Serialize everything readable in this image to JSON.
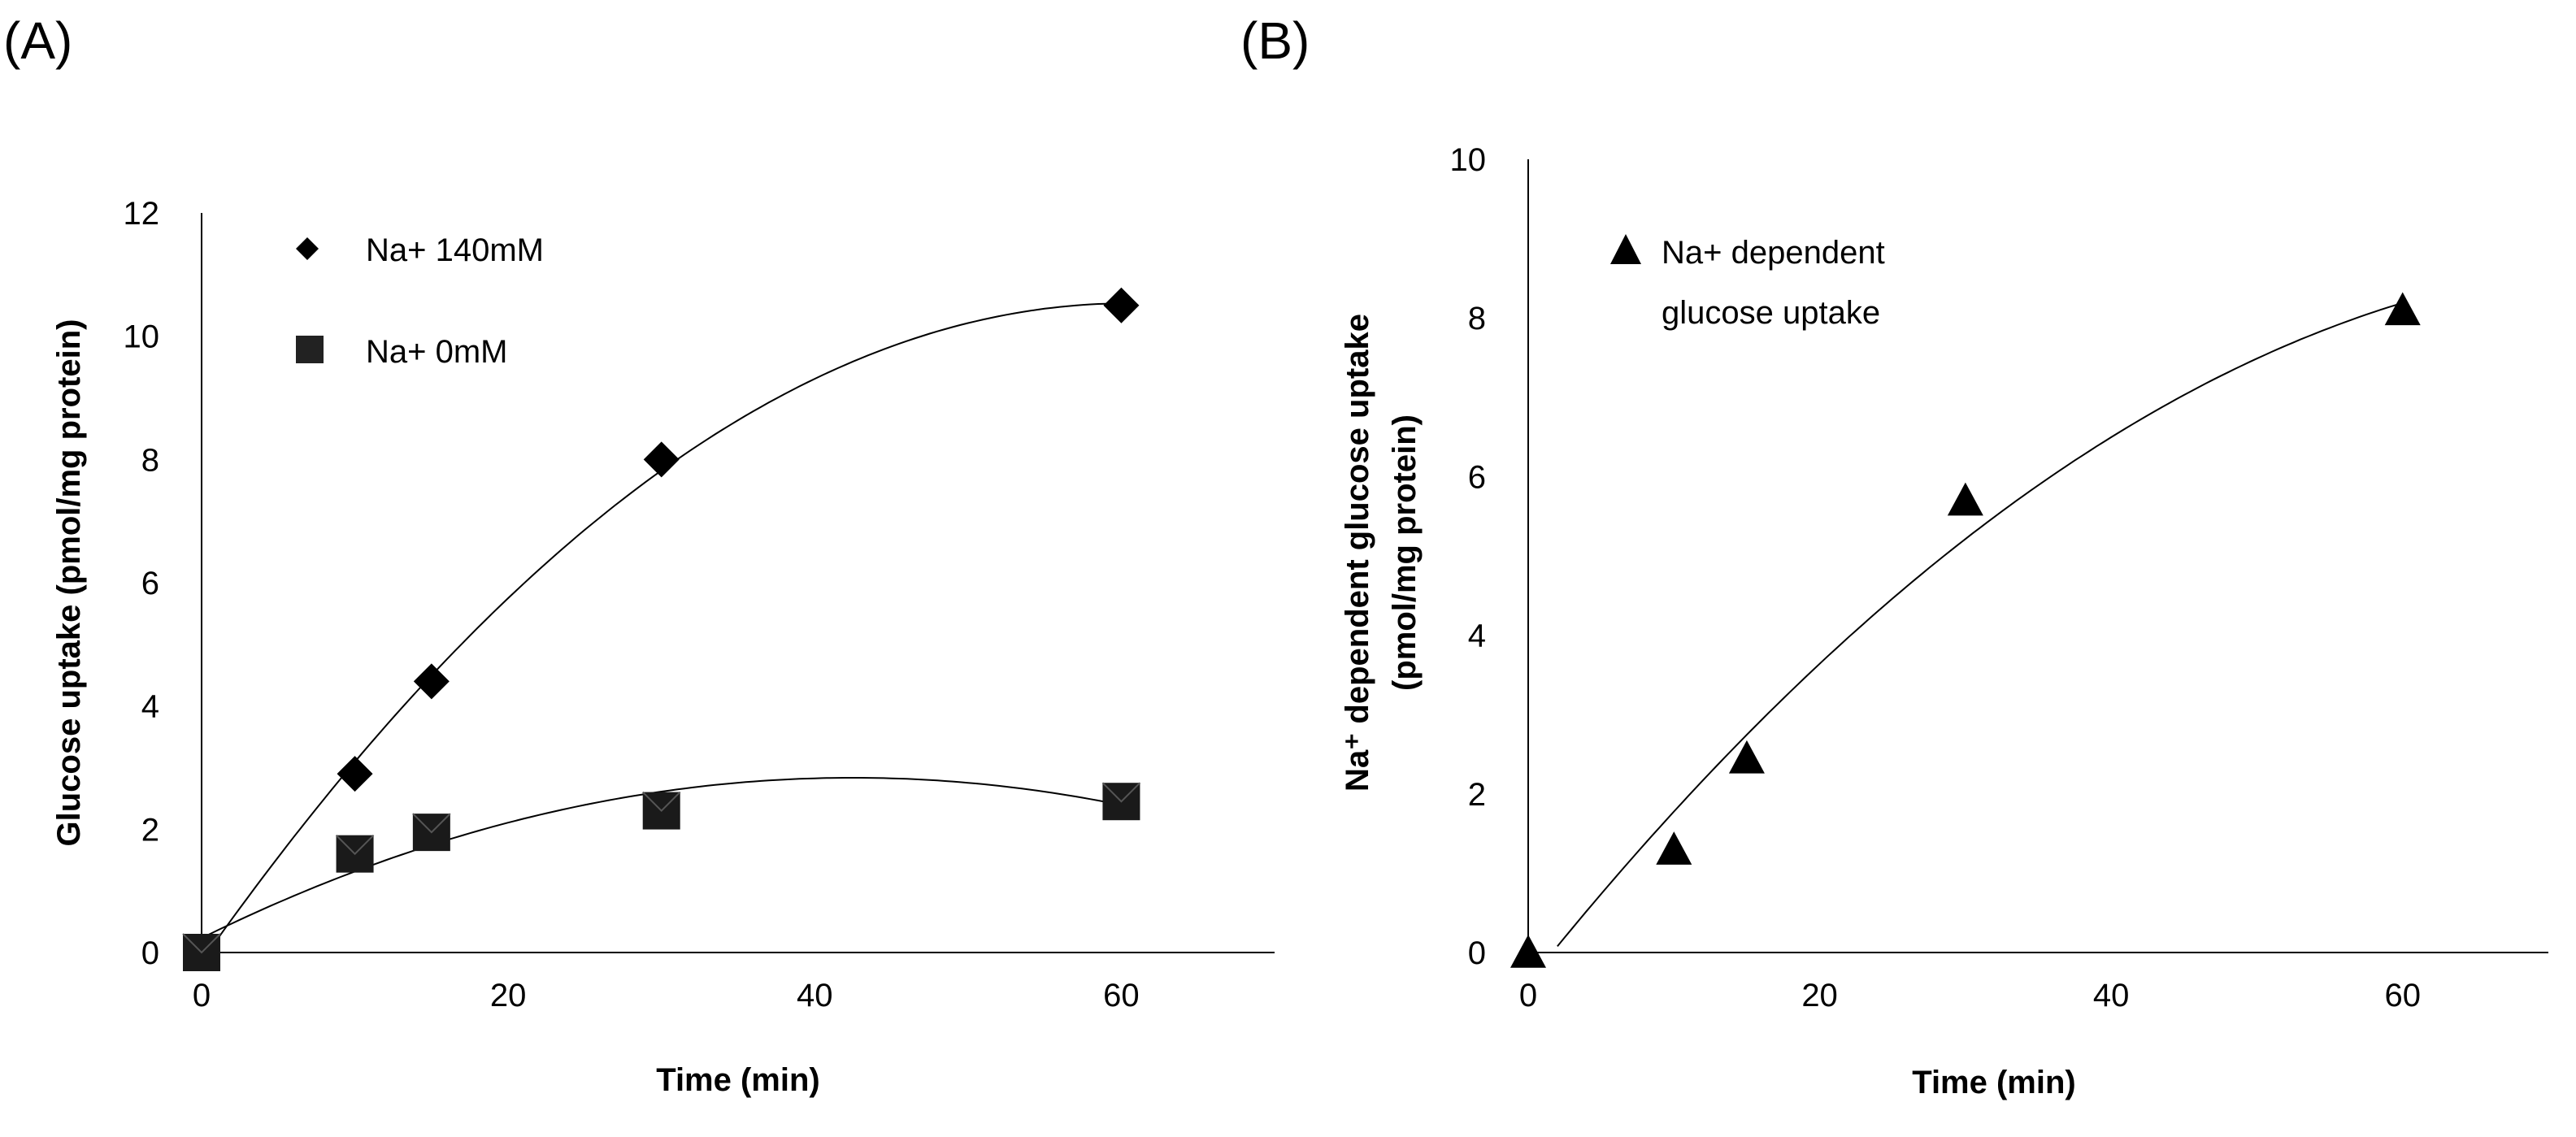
{
  "chart_data": [
    {
      "type": "scatter",
      "panel_label": "(A)",
      "xlabel": "Time (min)",
      "ylabel": "Glucose uptake (pmol/mg protein)",
      "xlim": [
        0,
        70
      ],
      "ylim": [
        0,
        12
      ],
      "xticks": [
        "0",
        "20",
        "40",
        "60"
      ],
      "yticks": [
        "0",
        "2",
        "4",
        "6",
        "8",
        "10",
        "12"
      ],
      "legend_position": "top-left",
      "series": [
        {
          "name": "Na+ 140mM",
          "marker": "diamond",
          "x": [
            0,
            10,
            15,
            30,
            60
          ],
          "y": [
            0,
            2.9,
            4.4,
            8.0,
            10.5
          ],
          "trendline": "polynomial"
        },
        {
          "name": "Na+ 0mM",
          "marker": "square",
          "x": [
            0,
            10,
            15,
            30,
            60
          ],
          "y": [
            0,
            1.6,
            1.95,
            2.3,
            2.45
          ],
          "trendline": "polynomial"
        }
      ]
    },
    {
      "type": "scatter",
      "panel_label": "(B)",
      "xlabel": "Time (min)",
      "ylabel": "Na⁺ dependent glucose uptake (pmol/mg protein)",
      "ylabel_lines": [
        "Na⁺ dependent glucose uptake",
        "(pmol/mg protein)"
      ],
      "xlim": [
        0,
        70
      ],
      "ylim": [
        0,
        10
      ],
      "xticks": [
        "0",
        "20",
        "40",
        "60"
      ],
      "yticks": [
        "0",
        "2",
        "4",
        "6",
        "8",
        "10"
      ],
      "legend_position": "top-left",
      "series": [
        {
          "name": "Na+ dependent glucose uptake",
          "legend_lines": [
            "Na+ dependent",
            "glucose uptake"
          ],
          "marker": "triangle",
          "x": [
            0,
            10,
            15,
            30,
            60
          ],
          "y": [
            0,
            1.3,
            2.45,
            5.7,
            8.1
          ],
          "trendline": "polynomial"
        }
      ]
    }
  ]
}
